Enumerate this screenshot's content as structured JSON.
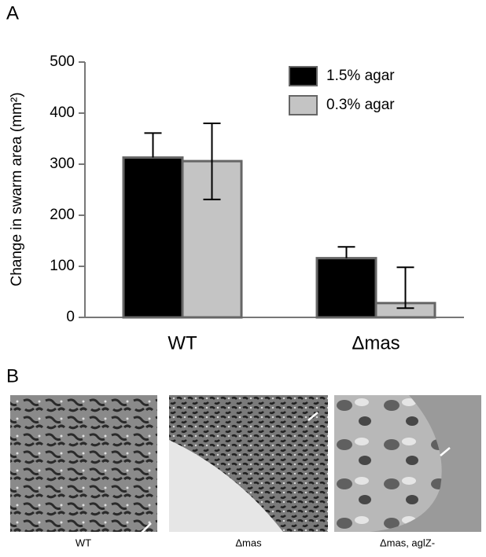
{
  "chart_data": {
    "type": "bar",
    "panel_labels": [
      "A",
      "B"
    ],
    "y_label": "Change in swarm area (mm²)",
    "categories": [
      "WT",
      "Δmas"
    ],
    "series": [
      {
        "name": "1.5% agar",
        "color": "#000000",
        "values": [
          313,
          116
        ],
        "error_high": [
          361,
          138
        ],
        "error_low": [
          null,
          null
        ]
      },
      {
        "name": "0.3% agar",
        "color": "#c4c4c4",
        "values": [
          306,
          28
        ],
        "error_high": [
          380,
          98
        ],
        "error_low": [
          231,
          18
        ]
      }
    ],
    "ylim": [
      0,
      500
    ],
    "yticks": [
      0,
      100,
      200,
      300,
      400,
      500
    ],
    "legend": "upper right",
    "image_captions": [
      "WT",
      "Δmas",
      "Δmas, aglZ-"
    ]
  }
}
